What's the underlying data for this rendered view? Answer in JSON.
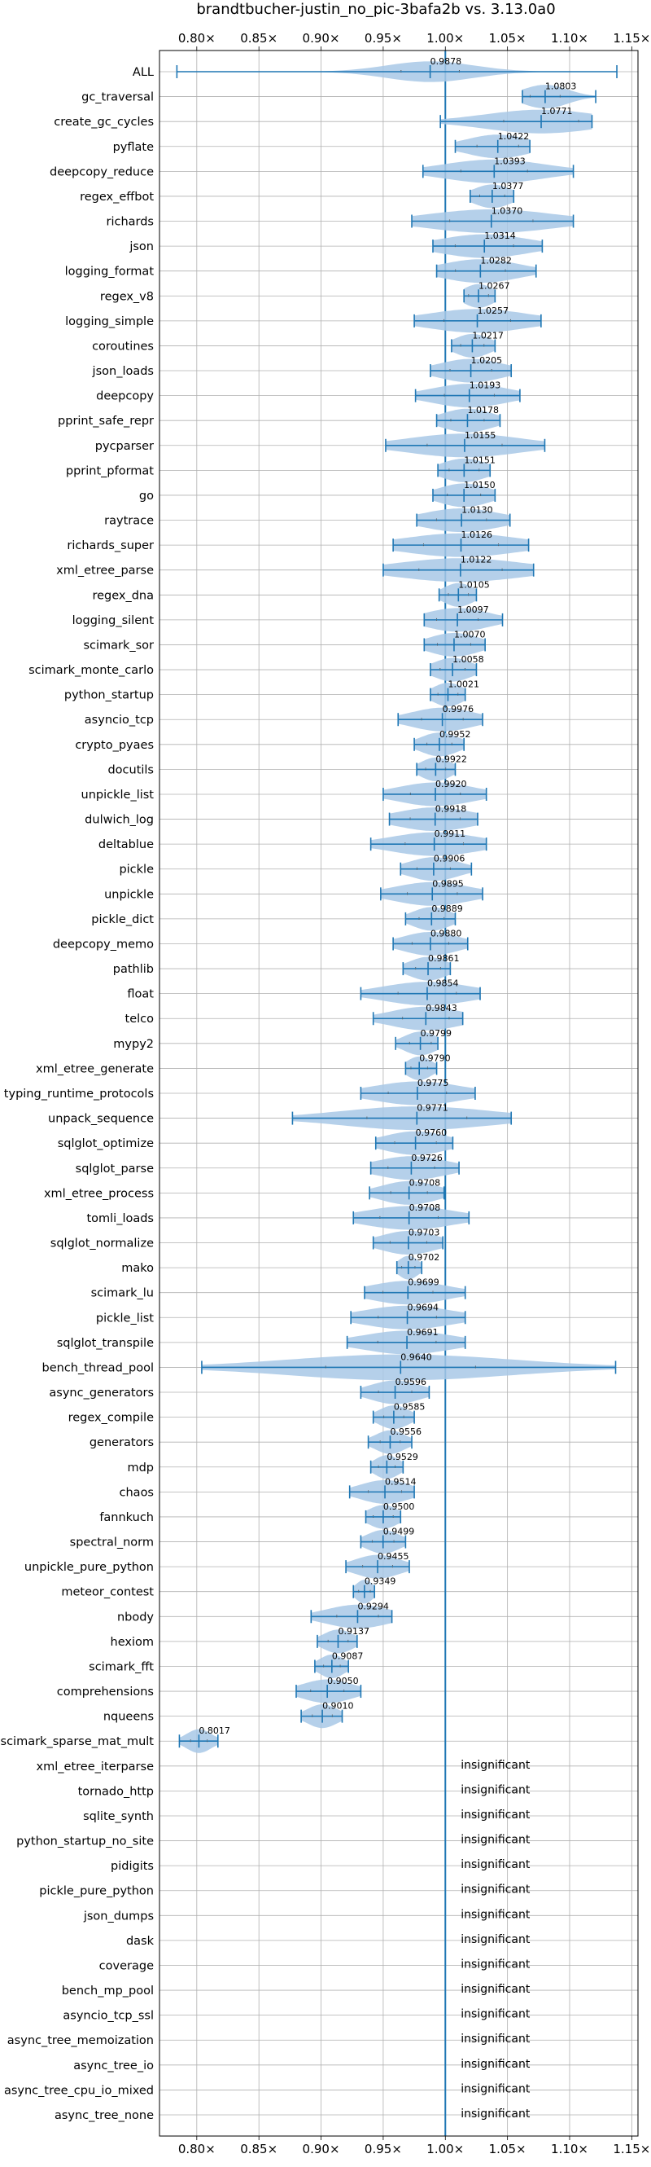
{
  "chart_data": {
    "type": "violin",
    "title": "brandtbucher-justin_no_pic-3bafa2b vs. 3.13.0a0",
    "xlim": [
      0.77,
      1.155
    ],
    "x_ticks": [
      0.8,
      0.85,
      0.9,
      0.95,
      1.0,
      1.05,
      1.1,
      1.15
    ],
    "x_tick_labels": [
      "0.80×",
      "0.85×",
      "0.90×",
      "0.95×",
      "1.00×",
      "1.05×",
      "1.10×",
      "1.15×"
    ],
    "reference_line": 1.0,
    "grid": true,
    "color": "#1f77b4",
    "fill_color": "#a8c8e6",
    "benchmarks": [
      {
        "name": "ALL",
        "value": 0.9878,
        "label": "0.9878",
        "min": 0.784,
        "max": 1.138,
        "spread": 0.035,
        "width": 0.48
      },
      {
        "name": "gc_traversal",
        "value": 1.0803,
        "label": "1.0803",
        "min": 1.062,
        "max": 1.121,
        "spread": 0.018,
        "width": 0.55
      },
      {
        "name": "create_gc_cycles",
        "value": 1.0771,
        "label": "1.0771",
        "min": 0.996,
        "max": 1.118,
        "spread": 0.045,
        "width": 0.55
      },
      {
        "name": "pyflate",
        "value": 1.0422,
        "label": "1.0422",
        "min": 1.008,
        "max": 1.068,
        "spread": 0.025,
        "width": 0.55
      },
      {
        "name": "deepcopy_reduce",
        "value": 1.0393,
        "label": "1.0393",
        "min": 0.982,
        "max": 1.103,
        "spread": 0.04,
        "width": 0.55
      },
      {
        "name": "regex_effbot",
        "value": 1.0377,
        "label": "1.0377",
        "min": 1.02,
        "max": 1.055,
        "spread": 0.015,
        "width": 0.55
      },
      {
        "name": "richards",
        "value": 1.037,
        "label": "1.0370",
        "min": 0.973,
        "max": 1.103,
        "spread": 0.05,
        "width": 0.55
      },
      {
        "name": "json",
        "value": 1.0314,
        "label": "1.0314",
        "min": 0.99,
        "max": 1.078,
        "spread": 0.035,
        "width": 0.55
      },
      {
        "name": "logging_format",
        "value": 1.0282,
        "label": "1.0282",
        "min": 0.993,
        "max": 1.073,
        "spread": 0.03,
        "width": 0.55
      },
      {
        "name": "regex_v8",
        "value": 1.0267,
        "label": "1.0267",
        "min": 1.015,
        "max": 1.04,
        "spread": 0.012,
        "width": 0.55
      },
      {
        "name": "logging_simple",
        "value": 1.0257,
        "label": "1.0257",
        "min": 0.975,
        "max": 1.077,
        "spread": 0.04,
        "width": 0.55
      },
      {
        "name": "coroutines",
        "value": 1.0217,
        "label": "1.0217",
        "min": 1.005,
        "max": 1.04,
        "spread": 0.014,
        "width": 0.55
      },
      {
        "name": "json_loads",
        "value": 1.0205,
        "label": "1.0205",
        "min": 0.988,
        "max": 1.053,
        "spread": 0.025,
        "width": 0.55
      },
      {
        "name": "deepcopy",
        "value": 1.0193,
        "label": "1.0193",
        "min": 0.976,
        "max": 1.06,
        "spread": 0.03,
        "width": 0.55
      },
      {
        "name": "pprint_safe_repr",
        "value": 1.0178,
        "label": "1.0178",
        "min": 0.993,
        "max": 1.044,
        "spread": 0.02,
        "width": 0.55
      },
      {
        "name": "pycparser",
        "value": 1.0155,
        "label": "1.0155",
        "min": 0.952,
        "max": 1.08,
        "spread": 0.045,
        "width": 0.55
      },
      {
        "name": "pprint_pformat",
        "value": 1.0151,
        "label": "1.0151",
        "min": 0.994,
        "max": 1.036,
        "spread": 0.018,
        "width": 0.55
      },
      {
        "name": "go",
        "value": 1.015,
        "label": "1.0150",
        "min": 0.99,
        "max": 1.04,
        "spread": 0.02,
        "width": 0.55
      },
      {
        "name": "raytrace",
        "value": 1.013,
        "label": "1.0130",
        "min": 0.977,
        "max": 1.052,
        "spread": 0.03,
        "width": 0.55
      },
      {
        "name": "richards_super",
        "value": 1.0126,
        "label": "1.0126",
        "min": 0.958,
        "max": 1.067,
        "spread": 0.045,
        "width": 0.55
      },
      {
        "name": "xml_etree_parse",
        "value": 1.0122,
        "label": "1.0122",
        "min": 0.95,
        "max": 1.071,
        "spread": 0.05,
        "width": 0.55
      },
      {
        "name": "regex_dna",
        "value": 1.0105,
        "label": "1.0105",
        "min": 0.995,
        "max": 1.025,
        "spread": 0.012,
        "width": 0.55
      },
      {
        "name": "logging_silent",
        "value": 1.0097,
        "label": "1.0097",
        "min": 0.983,
        "max": 1.046,
        "spread": 0.025,
        "width": 0.55
      },
      {
        "name": "scimark_sor",
        "value": 1.007,
        "label": "1.0070",
        "min": 0.983,
        "max": 1.032,
        "spread": 0.02,
        "width": 0.55
      },
      {
        "name": "scimark_monte_carlo",
        "value": 1.0058,
        "label": "1.0058",
        "min": 0.988,
        "max": 1.025,
        "spread": 0.015,
        "width": 0.55
      },
      {
        "name": "python_startup",
        "value": 1.0021,
        "label": "1.0021",
        "min": 0.988,
        "max": 1.016,
        "spread": 0.012,
        "width": 0.55
      },
      {
        "name": "asyncio_tcp",
        "value": 0.9976,
        "label": "0.9976",
        "min": 0.962,
        "max": 1.03,
        "spread": 0.025,
        "width": 0.55
      },
      {
        "name": "crypto_pyaes",
        "value": 0.9952,
        "label": "0.9952",
        "min": 0.975,
        "max": 1.015,
        "spread": 0.015,
        "width": 0.55
      },
      {
        "name": "docutils",
        "value": 0.9922,
        "label": "0.9922",
        "min": 0.977,
        "max": 1.008,
        "spread": 0.012,
        "width": 0.55
      },
      {
        "name": "unpickle_list",
        "value": 0.992,
        "label": "0.9920",
        "min": 0.95,
        "max": 1.033,
        "spread": 0.03,
        "width": 0.55
      },
      {
        "name": "dulwich_log",
        "value": 0.9918,
        "label": "0.9918",
        "min": 0.955,
        "max": 1.026,
        "spread": 0.03,
        "width": 0.55
      },
      {
        "name": "deltablue",
        "value": 0.9911,
        "label": "0.9911",
        "min": 0.94,
        "max": 1.033,
        "spread": 0.035,
        "width": 0.55
      },
      {
        "name": "pickle",
        "value": 0.9906,
        "label": "0.9906",
        "min": 0.964,
        "max": 1.021,
        "spread": 0.02,
        "width": 0.55
      },
      {
        "name": "unpickle",
        "value": 0.9895,
        "label": "0.9895",
        "min": 0.948,
        "max": 1.03,
        "spread": 0.03,
        "width": 0.55
      },
      {
        "name": "pickle_dict",
        "value": 0.9889,
        "label": "0.9889",
        "min": 0.968,
        "max": 1.008,
        "spread": 0.015,
        "width": 0.55
      },
      {
        "name": "deepcopy_memo",
        "value": 0.988,
        "label": "0.9880",
        "min": 0.958,
        "max": 1.018,
        "spread": 0.022,
        "width": 0.55
      },
      {
        "name": "pathlib",
        "value": 0.9861,
        "label": "0.9861",
        "min": 0.966,
        "max": 1.004,
        "spread": 0.015,
        "width": 0.55
      },
      {
        "name": "float",
        "value": 0.9854,
        "label": "0.9854",
        "min": 0.932,
        "max": 1.028,
        "spread": 0.035,
        "width": 0.55
      },
      {
        "name": "telco",
        "value": 0.9843,
        "label": "0.9843",
        "min": 0.942,
        "max": 1.014,
        "spread": 0.028,
        "width": 0.55
      },
      {
        "name": "mypy2",
        "value": 0.9799,
        "label": "0.9799",
        "min": 0.96,
        "max": 0.994,
        "spread": 0.013,
        "width": 0.55
      },
      {
        "name": "xml_etree_generate",
        "value": 0.979,
        "label": "0.9790",
        "min": 0.968,
        "max": 0.993,
        "spread": 0.01,
        "width": 0.55
      },
      {
        "name": "typing_runtime_protocols",
        "value": 0.9775,
        "label": "0.9775",
        "min": 0.932,
        "max": 1.024,
        "spread": 0.035,
        "width": 0.55
      },
      {
        "name": "unpack_sequence",
        "value": 0.9771,
        "label": "0.9771",
        "min": 0.877,
        "max": 1.053,
        "spread": 0.06,
        "width": 0.55
      },
      {
        "name": "sqlglot_optimize",
        "value": 0.976,
        "label": "0.9760",
        "min": 0.944,
        "max": 1.006,
        "spread": 0.025,
        "width": 0.55
      },
      {
        "name": "sqlglot_parse",
        "value": 0.9726,
        "label": "0.9726",
        "min": 0.94,
        "max": 1.011,
        "spread": 0.028,
        "width": 0.55
      },
      {
        "name": "xml_etree_process",
        "value": 0.9708,
        "label": "0.9708",
        "min": 0.939,
        "max": 0.999,
        "spread": 0.022,
        "width": 0.55
      },
      {
        "name": "tomli_loads",
        "value": 0.9708,
        "label": "0.9708",
        "min": 0.926,
        "max": 1.019,
        "spread": 0.035,
        "width": 0.55
      },
      {
        "name": "sqlglot_normalize",
        "value": 0.9703,
        "label": "0.9703",
        "min": 0.942,
        "max": 0.998,
        "spread": 0.022,
        "width": 0.55
      },
      {
        "name": "mako",
        "value": 0.9702,
        "label": "0.9702",
        "min": 0.961,
        "max": 0.981,
        "spread": 0.008,
        "width": 0.55
      },
      {
        "name": "scimark_lu",
        "value": 0.9699,
        "label": "0.9699",
        "min": 0.935,
        "max": 1.016,
        "spread": 0.03,
        "width": 0.55
      },
      {
        "name": "pickle_list",
        "value": 0.9694,
        "label": "0.9694",
        "min": 0.924,
        "max": 1.016,
        "spread": 0.035,
        "width": 0.55
      },
      {
        "name": "sqlglot_transpile",
        "value": 0.9691,
        "label": "0.9691",
        "min": 0.921,
        "max": 1.016,
        "spread": 0.035,
        "width": 0.55
      },
      {
        "name": "bench_thread_pool",
        "value": 0.964,
        "label": "0.9640",
        "min": 0.804,
        "max": 1.137,
        "spread": 0.09,
        "width": 0.6
      },
      {
        "name": "async_generators",
        "value": 0.9596,
        "label": "0.9596",
        "min": 0.932,
        "max": 0.987,
        "spread": 0.02,
        "width": 0.55
      },
      {
        "name": "regex_compile",
        "value": 0.9585,
        "label": "0.9585",
        "min": 0.942,
        "max": 0.975,
        "spread": 0.012,
        "width": 0.55
      },
      {
        "name": "generators",
        "value": 0.9556,
        "label": "0.9556",
        "min": 0.938,
        "max": 0.973,
        "spread": 0.012,
        "width": 0.55
      },
      {
        "name": "mdp",
        "value": 0.9529,
        "label": "0.9529",
        "min": 0.94,
        "max": 0.966,
        "spread": 0.01,
        "width": 0.55
      },
      {
        "name": "chaos",
        "value": 0.9514,
        "label": "0.9514",
        "min": 0.923,
        "max": 0.975,
        "spread": 0.02,
        "width": 0.55
      },
      {
        "name": "fannkuch",
        "value": 0.95,
        "label": "0.9500",
        "min": 0.936,
        "max": 0.964,
        "spread": 0.012,
        "width": 0.55
      },
      {
        "name": "spectral_norm",
        "value": 0.9499,
        "label": "0.9499",
        "min": 0.932,
        "max": 0.968,
        "spread": 0.013,
        "width": 0.55
      },
      {
        "name": "unpickle_pure_python",
        "value": 0.9455,
        "label": "0.9455",
        "min": 0.92,
        "max": 0.971,
        "spread": 0.018,
        "width": 0.55
      },
      {
        "name": "meteor_contest",
        "value": 0.9349,
        "label": "0.9349",
        "min": 0.926,
        "max": 0.943,
        "spread": 0.007,
        "width": 0.55
      },
      {
        "name": "nbody",
        "value": 0.9294,
        "label": "0.9294",
        "min": 0.892,
        "max": 0.957,
        "spread": 0.025,
        "width": 0.55
      },
      {
        "name": "hexiom",
        "value": 0.9137,
        "label": "0.9137",
        "min": 0.897,
        "max": 0.929,
        "spread": 0.012,
        "width": 0.55
      },
      {
        "name": "scimark_fft",
        "value": 0.9087,
        "label": "0.9087",
        "min": 0.895,
        "max": 0.922,
        "spread": 0.01,
        "width": 0.55
      },
      {
        "name": "comprehensions",
        "value": 0.905,
        "label": "0.9050",
        "min": 0.88,
        "max": 0.932,
        "spread": 0.02,
        "width": 0.55
      },
      {
        "name": "nqueens",
        "value": 0.901,
        "label": "0.9010",
        "min": 0.884,
        "max": 0.917,
        "spread": 0.012,
        "width": 0.55
      },
      {
        "name": "scimark_sparse_mat_mult",
        "value": 0.8017,
        "label": "0.8017",
        "min": 0.786,
        "max": 0.817,
        "spread": 0.01,
        "width": 0.55
      },
      {
        "name": "xml_etree_iterparse",
        "insignificant": true,
        "label": "insignificant"
      },
      {
        "name": "tornado_http",
        "insignificant": true,
        "label": "insignificant"
      },
      {
        "name": "sqlite_synth",
        "insignificant": true,
        "label": "insignificant"
      },
      {
        "name": "python_startup_no_site",
        "insignificant": true,
        "label": "insignificant"
      },
      {
        "name": "pidigits",
        "insignificant": true,
        "label": "insignificant"
      },
      {
        "name": "pickle_pure_python",
        "insignificant": true,
        "label": "insignificant"
      },
      {
        "name": "json_dumps",
        "insignificant": true,
        "label": "insignificant"
      },
      {
        "name": "dask",
        "insignificant": true,
        "label": "insignificant"
      },
      {
        "name": "coverage",
        "insignificant": true,
        "label": "insignificant"
      },
      {
        "name": "bench_mp_pool",
        "insignificant": true,
        "label": "insignificant"
      },
      {
        "name": "asyncio_tcp_ssl",
        "insignificant": true,
        "label": "insignificant"
      },
      {
        "name": "async_tree_memoization",
        "insignificant": true,
        "label": "insignificant"
      },
      {
        "name": "async_tree_io",
        "insignificant": true,
        "label": "insignificant"
      },
      {
        "name": "async_tree_cpu_io_mixed",
        "insignificant": true,
        "label": "insignificant"
      },
      {
        "name": "async_tree_none",
        "insignificant": true,
        "label": "insignificant"
      }
    ]
  }
}
